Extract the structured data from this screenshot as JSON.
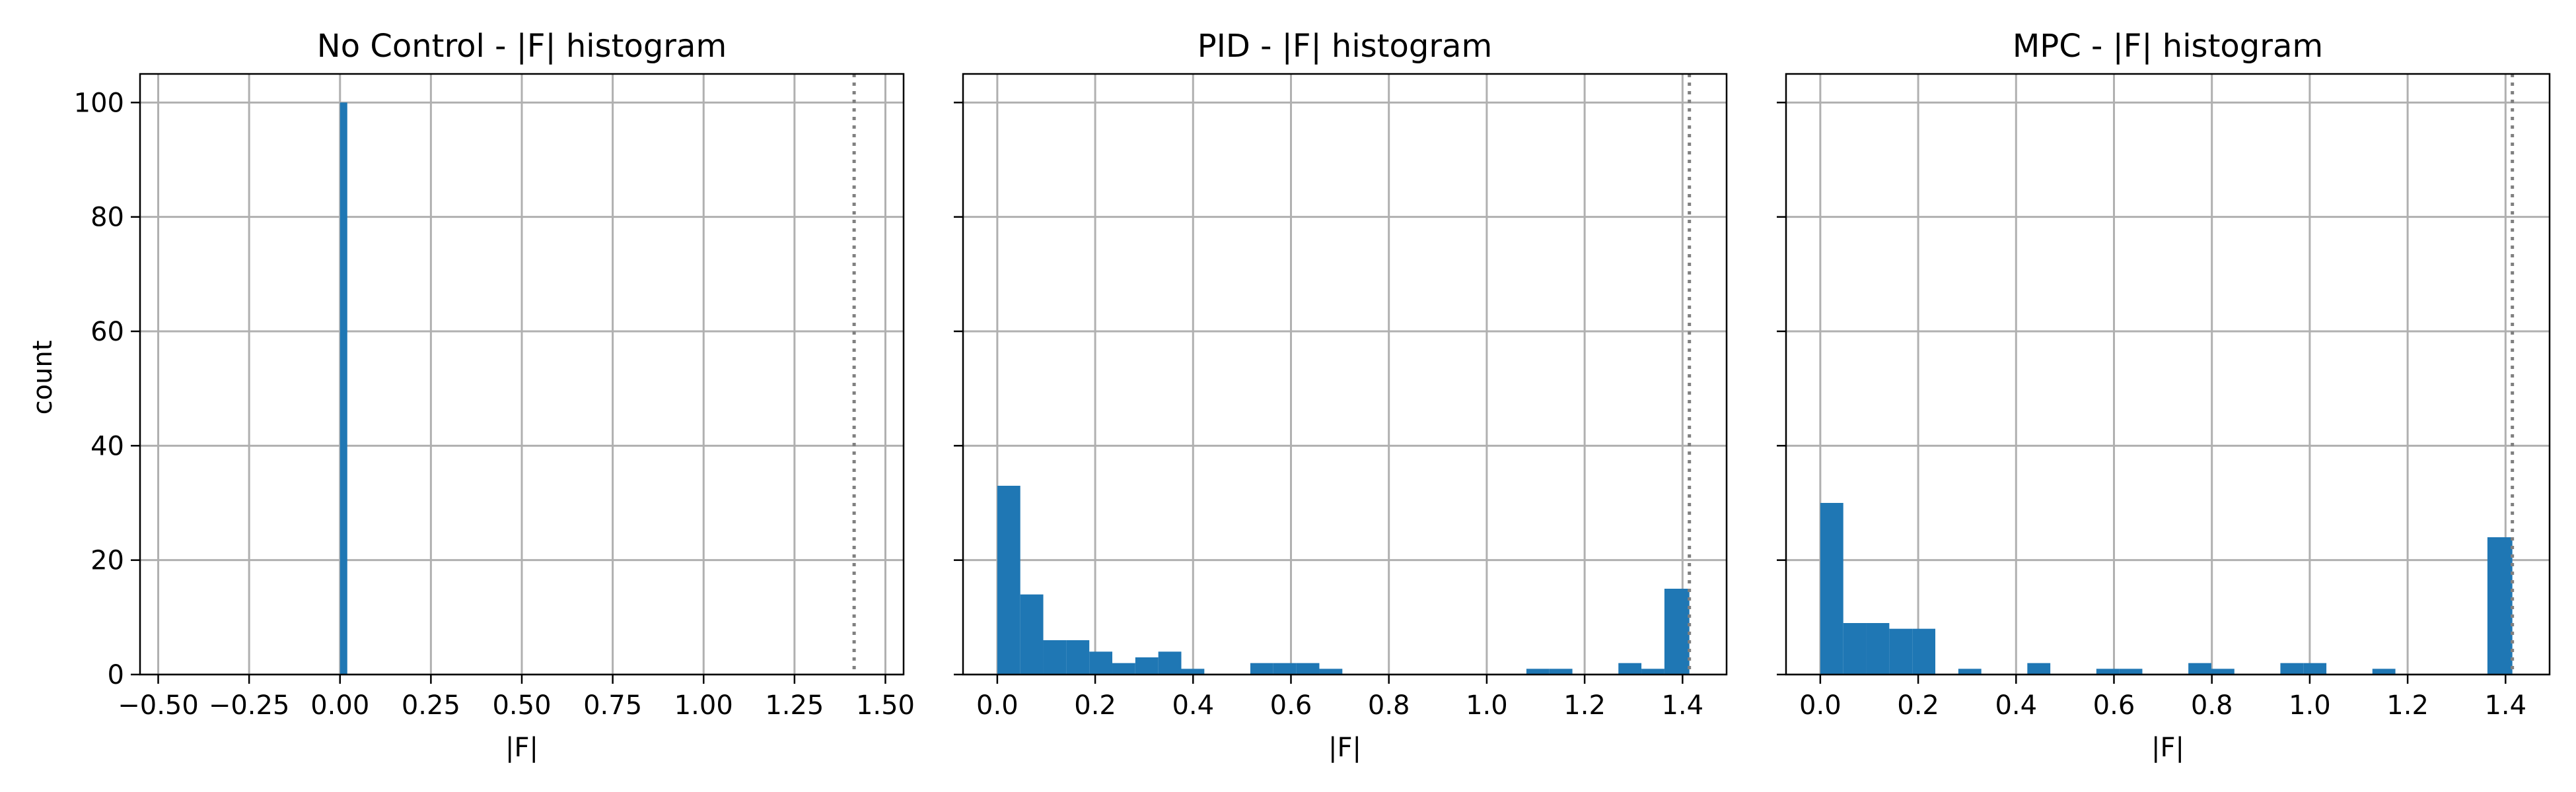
{
  "figure": {
    "ylabel": "count",
    "bar_color": "#1f77b4",
    "grid_color": "#b0b0b0",
    "limit_line_color": "#808080"
  },
  "chart_data": [
    {
      "type": "bar",
      "title": "No Control - |F| histogram",
      "xlabel": "|F|",
      "ylabel": "count",
      "xlim": [
        -0.55,
        1.55
      ],
      "ylim": [
        0,
        105
      ],
      "grid": true,
      "xticks": [
        -0.5,
        -0.25,
        0.0,
        0.25,
        0.5,
        0.75,
        1.0,
        1.25,
        1.5
      ],
      "xtick_labels": [
        "−0.50",
        "−0.25",
        "0.00",
        "0.25",
        "0.50",
        "0.75",
        "1.00",
        "1.25",
        "1.50"
      ],
      "yticks": [
        0,
        20,
        40,
        60,
        80,
        100
      ],
      "ytick_labels": [
        "0",
        "20",
        "40",
        "60",
        "80",
        "100"
      ],
      "limit_line_x": 1.414,
      "bins": [
        [
          -0.0,
          0.02,
          100
        ]
      ]
    },
    {
      "type": "bar",
      "title": "PID - |F| histogram",
      "xlabel": "|F|",
      "ylabel": "",
      "xlim": [
        -0.07,
        1.49
      ],
      "ylim": [
        0,
        105
      ],
      "grid": true,
      "xticks": [
        0.0,
        0.2,
        0.4,
        0.6,
        0.8,
        1.0,
        1.2,
        1.4
      ],
      "xtick_labels": [
        "0.0",
        "0.2",
        "0.4",
        "0.6",
        "0.8",
        "1.0",
        "1.2",
        "1.4"
      ],
      "yticks": [
        0,
        20,
        40,
        60,
        80,
        100
      ],
      "ytick_labels": [
        "",
        "",
        "",
        "",
        "",
        ""
      ],
      "limit_line_x": 1.414,
      "bins": [
        [
          0.0,
          0.047,
          33
        ],
        [
          0.047,
          0.094,
          14
        ],
        [
          0.094,
          0.141,
          6
        ],
        [
          0.141,
          0.188,
          6
        ],
        [
          0.188,
          0.235,
          4
        ],
        [
          0.235,
          0.282,
          2
        ],
        [
          0.282,
          0.329,
          3
        ],
        [
          0.329,
          0.376,
          4
        ],
        [
          0.376,
          0.423,
          1
        ],
        [
          0.517,
          0.564,
          2
        ],
        [
          0.564,
          0.611,
          2
        ],
        [
          0.611,
          0.658,
          2
        ],
        [
          0.658,
          0.705,
          1
        ],
        [
          1.081,
          1.128,
          1
        ],
        [
          1.128,
          1.175,
          1
        ],
        [
          1.269,
          1.316,
          2
        ],
        [
          1.316,
          1.363,
          1
        ],
        [
          1.363,
          1.414,
          15
        ]
      ]
    },
    {
      "type": "bar",
      "title": "MPC - |F| histogram",
      "xlabel": "|F|",
      "ylabel": "",
      "xlim": [
        -0.07,
        1.49
      ],
      "ylim": [
        0,
        105
      ],
      "grid": true,
      "xticks": [
        0.0,
        0.2,
        0.4,
        0.6,
        0.8,
        1.0,
        1.2,
        1.4
      ],
      "xtick_labels": [
        "0.0",
        "0.2",
        "0.4",
        "0.6",
        "0.8",
        "1.0",
        "1.2",
        "1.4"
      ],
      "yticks": [
        0,
        20,
        40,
        60,
        80,
        100
      ],
      "ytick_labels": [
        "",
        "",
        "",
        "",
        "",
        ""
      ],
      "limit_line_x": 1.414,
      "bins": [
        [
          0.0,
          0.047,
          30
        ],
        [
          0.047,
          0.094,
          9
        ],
        [
          0.094,
          0.141,
          9
        ],
        [
          0.141,
          0.188,
          8
        ],
        [
          0.188,
          0.235,
          8
        ],
        [
          0.282,
          0.329,
          1
        ],
        [
          0.423,
          0.47,
          2
        ],
        [
          0.564,
          0.611,
          1
        ],
        [
          0.611,
          0.658,
          1
        ],
        [
          0.752,
          0.799,
          2
        ],
        [
          0.799,
          0.846,
          1
        ],
        [
          0.94,
          0.987,
          2
        ],
        [
          0.987,
          1.034,
          2
        ],
        [
          1.128,
          1.175,
          1
        ],
        [
          1.363,
          1.414,
          24
        ]
      ]
    }
  ]
}
